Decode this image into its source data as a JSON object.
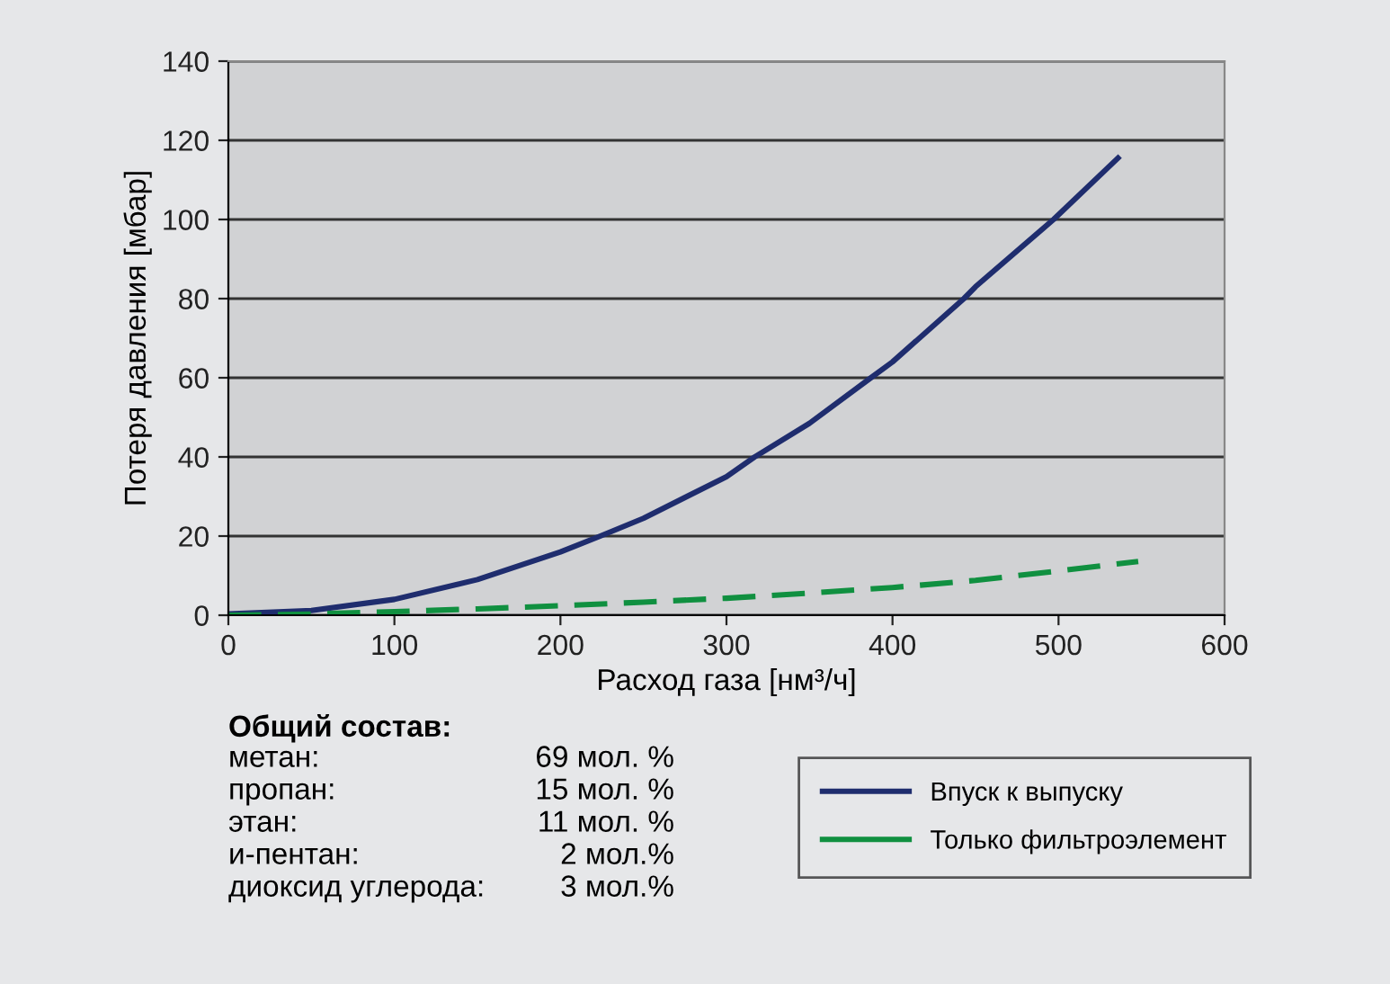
{
  "chart_data": {
    "type": "line",
    "xlabel": "Расход газа [нм³/ч]",
    "ylabel": "Потеря давления [мбар]",
    "xlim": [
      0,
      600
    ],
    "xticks": [
      0,
      100,
      200,
      300,
      400,
      500,
      600
    ],
    "ylim": [
      0,
      140
    ],
    "yticks": [
      0,
      20,
      40,
      60,
      80,
      100,
      120,
      140
    ],
    "grid": "y",
    "legend": "bottom right",
    "series": [
      {
        "name": "Впуск к выпуску",
        "color": "#1f2d6e",
        "line_style": "solid",
        "x": [
          0,
          50,
          100,
          150,
          200,
          224,
          250,
          300,
          317,
          350,
          387,
          400,
          443,
          450,
          497,
          537
        ],
        "values": [
          0.3,
          1.2,
          4,
          9,
          16,
          20,
          24.5,
          35,
          40,
          48.5,
          60,
          64,
          80,
          83,
          100,
          116
        ]
      },
      {
        "name": "Только фильтроэлемент",
        "color": "#109040",
        "line_style": "dashed",
        "x": [
          0,
          50,
          100,
          150,
          200,
          250,
          300,
          350,
          400,
          450,
          500,
          548
        ],
        "values": [
          0,
          0.3,
          0.9,
          1.6,
          2.4,
          3.3,
          4.3,
          5.6,
          7.0,
          8.8,
          11.2,
          13.6
        ]
      }
    ],
    "annotations": [
      "Общий состав:",
      "метан:",
      "69 мол. %",
      "пропан:",
      "15 мол. %",
      "этан:",
      "11 мол. %",
      "и-пентан:",
      "2 мол.%",
      "диоксид углерода:",
      "3 мол.%"
    ]
  }
}
